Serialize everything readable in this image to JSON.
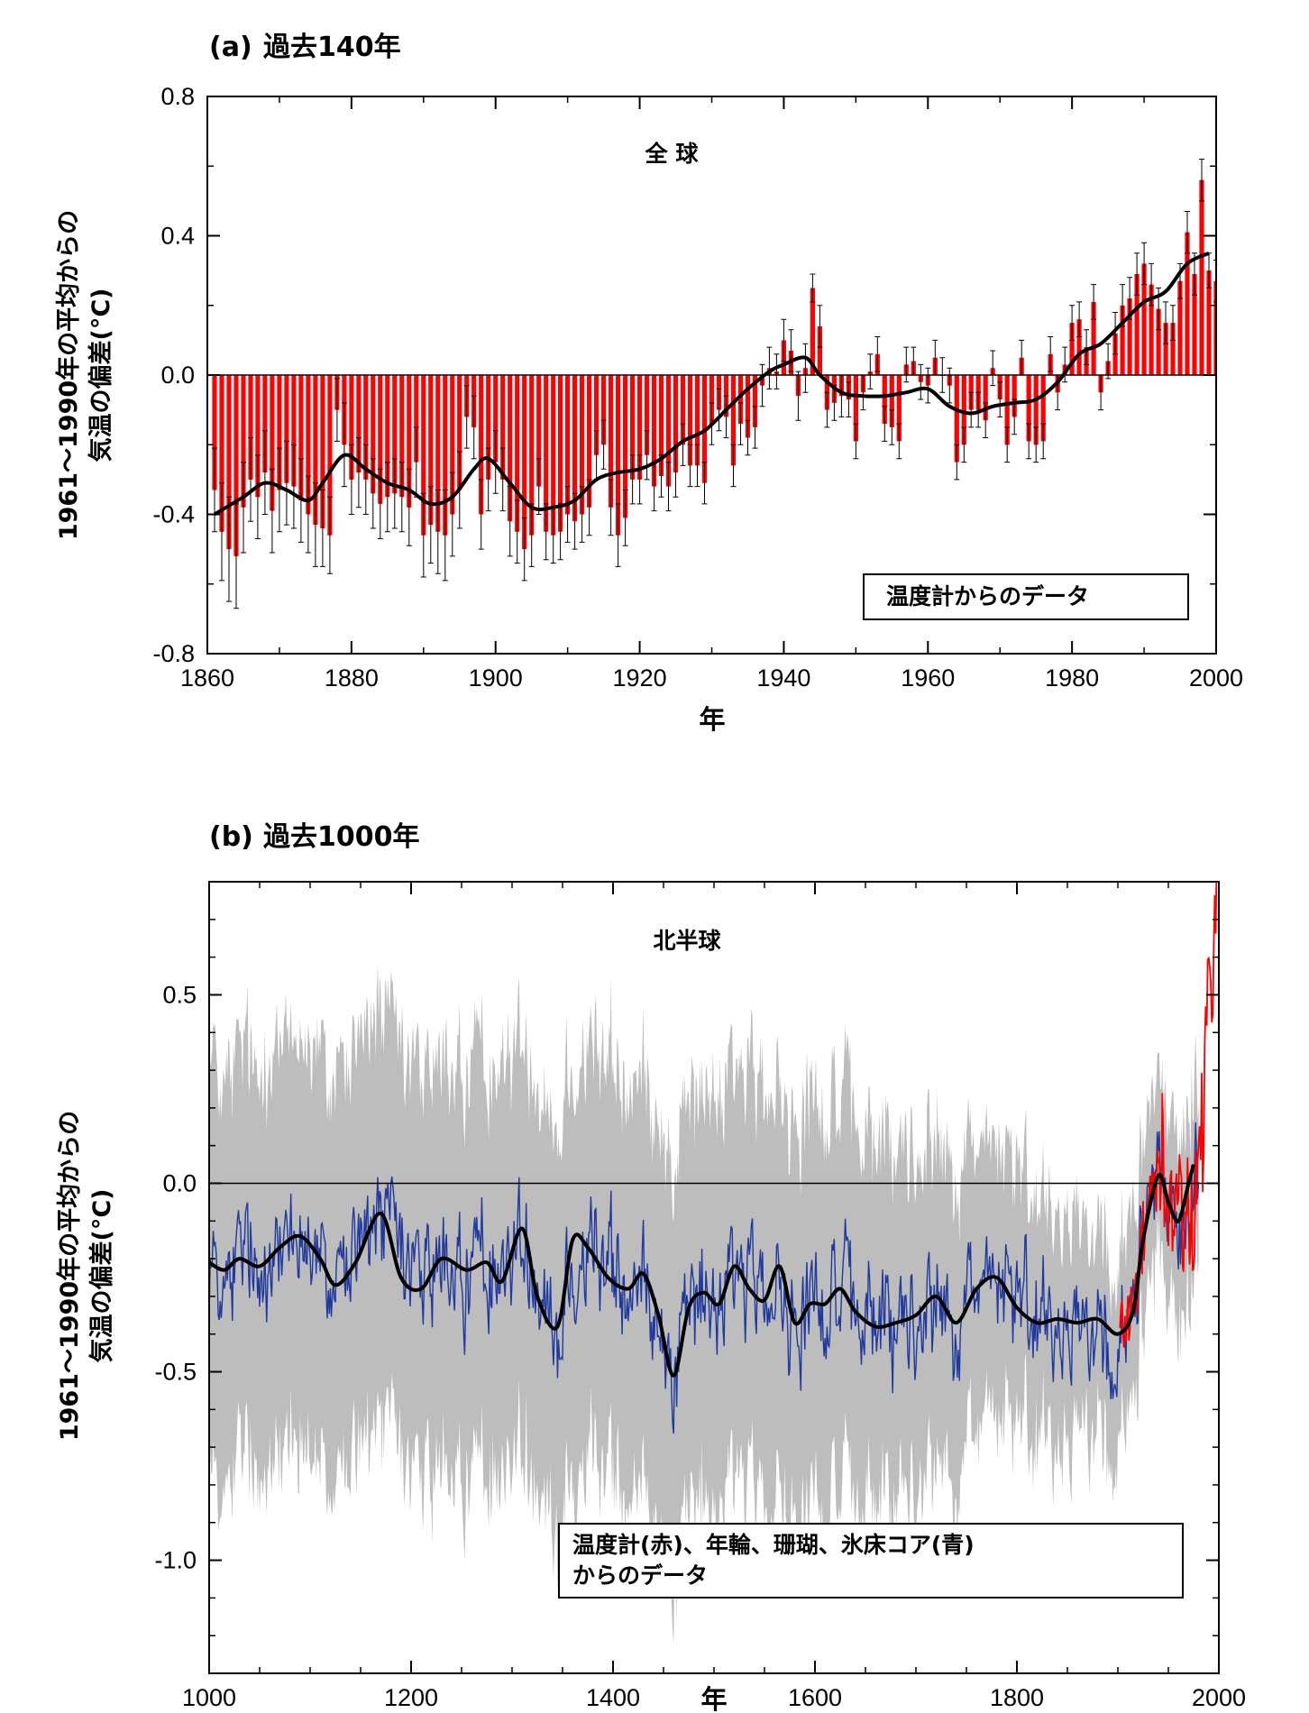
{
  "colors": {
    "bar": "#ff0000",
    "errorbar": "#000000",
    "smooth": "#000000",
    "proxy": "#1f3a9c",
    "uncertainty": "#bdbdbd",
    "instrumental": "#ff0000"
  },
  "chart_data": [
    {
      "type": "bar",
      "panel_label": "(a)",
      "title": "過去140年",
      "region_label": "全 球",
      "legend_text": "温度計からのデータ",
      "xlabel": "年",
      "ylabel_line1": "1961～1990年の平均からの",
      "ylabel_line2": "気温の偏差(°C)",
      "xlim": [
        1860,
        2000
      ],
      "ylim": [
        -0.8,
        0.8
      ],
      "xticks": [
        "1860",
        "1880",
        "1900",
        "1920",
        "1940",
        "1960",
        "1980",
        "2000"
      ],
      "yticks": [
        "-0.8",
        "-0.4",
        "0.0",
        "0.4",
        "0.8"
      ],
      "x": [
        1861,
        1862,
        1863,
        1864,
        1865,
        1866,
        1867,
        1868,
        1869,
        1870,
        1871,
        1872,
        1873,
        1874,
        1875,
        1876,
        1877,
        1878,
        1879,
        1880,
        1881,
        1882,
        1883,
        1884,
        1885,
        1886,
        1887,
        1888,
        1889,
        1890,
        1891,
        1892,
        1893,
        1894,
        1895,
        1896,
        1897,
        1898,
        1899,
        1900,
        1901,
        1902,
        1903,
        1904,
        1905,
        1906,
        1907,
        1908,
        1909,
        1910,
        1911,
        1912,
        1913,
        1914,
        1915,
        1916,
        1917,
        1918,
        1919,
        1920,
        1921,
        1922,
        1923,
        1924,
        1925,
        1926,
        1927,
        1928,
        1929,
        1930,
        1931,
        1932,
        1933,
        1934,
        1935,
        1936,
        1937,
        1938,
        1939,
        1940,
        1941,
        1942,
        1943,
        1944,
        1945,
        1946,
        1947,
        1948,
        1949,
        1950,
        1951,
        1952,
        1953,
        1954,
        1955,
        1956,
        1957,
        1958,
        1959,
        1960,
        1961,
        1962,
        1963,
        1964,
        1965,
        1966,
        1967,
        1968,
        1969,
        1970,
        1971,
        1972,
        1973,
        1974,
        1975,
        1976,
        1977,
        1978,
        1979,
        1980,
        1981,
        1982,
        1983,
        1984,
        1985,
        1986,
        1987,
        1988,
        1989,
        1990,
        1991,
        1992,
        1993,
        1994,
        1995,
        1996,
        1997,
        1998,
        1999,
        2000
      ],
      "values": [
        -0.33,
        -0.45,
        -0.5,
        -0.52,
        -0.38,
        -0.3,
        -0.35,
        -0.28,
        -0.39,
        -0.33,
        -0.31,
        -0.32,
        -0.36,
        -0.4,
        -0.43,
        -0.44,
        -0.46,
        -0.1,
        -0.2,
        -0.3,
        -0.28,
        -0.3,
        -0.34,
        -0.37,
        -0.35,
        -0.34,
        -0.35,
        -0.38,
        -0.25,
        -0.46,
        -0.43,
        -0.45,
        -0.46,
        -0.4,
        -0.33,
        -0.12,
        -0.15,
        -0.4,
        -0.3,
        -0.25,
        -0.3,
        -0.42,
        -0.45,
        -0.5,
        -0.46,
        -0.32,
        -0.45,
        -0.46,
        -0.45,
        -0.4,
        -0.42,
        -0.4,
        -0.38,
        -0.23,
        -0.2,
        -0.38,
        -0.46,
        -0.41,
        -0.3,
        -0.3,
        -0.23,
        -0.32,
        -0.29,
        -0.32,
        -0.28,
        -0.2,
        -0.26,
        -0.26,
        -0.31,
        -0.14,
        -0.1,
        -0.12,
        -0.26,
        -0.14,
        -0.18,
        -0.15,
        -0.03,
        0.02,
        0.01,
        0.1,
        0.07,
        -0.06,
        0.02,
        0.25,
        0.14,
        -0.1,
        -0.08,
        -0.06,
        -0.07,
        -0.19,
        -0.05,
        0.01,
        0.06,
        -0.14,
        -0.15,
        -0.19,
        0.03,
        0.04,
        -0.02,
        -0.03,
        0.05,
        0.0,
        -0.03,
        -0.25,
        -0.2,
        -0.1,
        -0.1,
        -0.13,
        0.02,
        -0.07,
        -0.2,
        -0.12,
        0.05,
        -0.19,
        -0.2,
        -0.19,
        0.06,
        -0.05,
        0.03,
        0.15,
        0.16,
        0.08,
        0.21,
        -0.05,
        0.04,
        0.12,
        0.2,
        0.22,
        0.29,
        0.32,
        0.26,
        0.19,
        0.15,
        0.15,
        0.27,
        0.41,
        0.29,
        0.56,
        0.3,
        0.27
      ],
      "errors": [
        0.12,
        0.14,
        0.15,
        0.15,
        0.13,
        0.12,
        0.12,
        0.12,
        0.12,
        0.12,
        0.12,
        0.12,
        0.12,
        0.11,
        0.12,
        0.11,
        0.11,
        0.09,
        0.12,
        0.1,
        0.1,
        0.1,
        0.1,
        0.1,
        0.1,
        0.1,
        0.1,
        0.11,
        0.1,
        0.12,
        0.11,
        0.12,
        0.13,
        0.12,
        0.11,
        0.09,
        0.09,
        0.1,
        0.09,
        0.09,
        0.09,
        0.1,
        0.09,
        0.09,
        0.09,
        0.08,
        0.08,
        0.08,
        0.08,
        0.08,
        0.08,
        0.08,
        0.08,
        0.07,
        0.07,
        0.08,
        0.09,
        0.08,
        0.07,
        0.07,
        0.07,
        0.07,
        0.06,
        0.07,
        0.07,
        0.06,
        0.06,
        0.06,
        0.06,
        0.06,
        0.06,
        0.06,
        0.06,
        0.06,
        0.05,
        0.06,
        0.06,
        0.06,
        0.05,
        0.06,
        0.06,
        0.07,
        0.07,
        0.04,
        0.06,
        0.05,
        0.05,
        0.06,
        0.05,
        0.05,
        0.05,
        0.05,
        0.05,
        0.05,
        0.05,
        0.05,
        0.05,
        0.04,
        0.05,
        0.05,
        0.05,
        0.05,
        0.05,
        0.05,
        0.05,
        0.05,
        0.05,
        0.05,
        0.05,
        0.05,
        0.05,
        0.05,
        0.05,
        0.05,
        0.05,
        0.05,
        0.05,
        0.05,
        0.05,
        0.05,
        0.05,
        0.05,
        0.05,
        0.05,
        0.05,
        0.06,
        0.06,
        0.06,
        0.06,
        0.06,
        0.06,
        0.06,
        0.06,
        0.05,
        0.05,
        0.06,
        0.06,
        0.06,
        0.05,
        0.06
      ],
      "smooth_x": [
        1861,
        1865,
        1868,
        1871,
        1874,
        1876,
        1879,
        1882,
        1885,
        1888,
        1891,
        1894,
        1897,
        1899,
        1902,
        1905,
        1908,
        1911,
        1914,
        1917,
        1920,
        1923,
        1926,
        1929,
        1932,
        1935,
        1938,
        1940,
        1943,
        1945,
        1948,
        1951,
        1954,
        1957,
        1960,
        1963,
        1966,
        1969,
        1972,
        1975,
        1978,
        1981,
        1984,
        1987,
        1990,
        1993,
        1996,
        1999
      ],
      "smooth_y": [
        -0.4,
        -0.35,
        -0.31,
        -0.33,
        -0.36,
        -0.31,
        -0.23,
        -0.27,
        -0.31,
        -0.33,
        -0.37,
        -0.35,
        -0.27,
        -0.24,
        -0.31,
        -0.38,
        -0.38,
        -0.36,
        -0.3,
        -0.28,
        -0.27,
        -0.24,
        -0.19,
        -0.16,
        -0.1,
        -0.04,
        0.01,
        0.03,
        0.05,
        0.0,
        -0.05,
        -0.06,
        -0.06,
        -0.05,
        -0.04,
        -0.09,
        -0.11,
        -0.09,
        -0.08,
        -0.07,
        -0.02,
        0.06,
        0.09,
        0.15,
        0.21,
        0.24,
        0.32,
        0.35
      ]
    },
    {
      "type": "line",
      "panel_label": "(b)",
      "title": "過去1000年",
      "region_label": "北半球",
      "legend_line1": "温度計(赤)、年輪、珊瑚、氷床コア(青)",
      "legend_line2": "からのデータ",
      "xlabel": "年",
      "ylabel_line1": "1961～1990年の平均からの",
      "ylabel_line2": "気温の偏差(°C)",
      "xlim": [
        1000,
        2000
      ],
      "ylim": [
        -1.3,
        0.8
      ],
      "xticks": [
        "1000",
        "1200",
        "1400",
        "1600",
        "1800",
        "2000"
      ],
      "yticks": [
        "-1.0",
        "-0.5",
        "0.0",
        "0.5"
      ],
      "smooth_x": [
        1000,
        1015,
        1030,
        1050,
        1070,
        1090,
        1110,
        1125,
        1145,
        1170,
        1190,
        1210,
        1230,
        1255,
        1275,
        1290,
        1310,
        1325,
        1345,
        1360,
        1375,
        1395,
        1415,
        1430,
        1445,
        1460,
        1475,
        1490,
        1505,
        1520,
        1535,
        1550,
        1565,
        1580,
        1595,
        1610,
        1625,
        1640,
        1660,
        1680,
        1700,
        1720,
        1740,
        1760,
        1780,
        1800,
        1820,
        1840,
        1860,
        1880,
        1900,
        1915,
        1925,
        1940,
        1950,
        1960,
        1970,
        1975
      ],
      "smooth_y": [
        -0.21,
        -0.23,
        -0.2,
        -0.22,
        -0.17,
        -0.14,
        -0.2,
        -0.27,
        -0.21,
        -0.08,
        -0.25,
        -0.28,
        -0.2,
        -0.23,
        -0.21,
        -0.26,
        -0.12,
        -0.3,
        -0.38,
        -0.15,
        -0.17,
        -0.25,
        -0.28,
        -0.24,
        -0.35,
        -0.51,
        -0.33,
        -0.29,
        -0.32,
        -0.22,
        -0.28,
        -0.31,
        -0.22,
        -0.37,
        -0.32,
        -0.32,
        -0.28,
        -0.34,
        -0.38,
        -0.37,
        -0.35,
        -0.3,
        -0.37,
        -0.28,
        -0.25,
        -0.33,
        -0.37,
        -0.36,
        -0.37,
        -0.36,
        -0.4,
        -0.34,
        -0.15,
        0.02,
        -0.05,
        -0.1,
        0.0,
        0.05
      ],
      "proxy_range": [
        1000,
        1980
      ],
      "instrumental_range": [
        1902,
        1998
      ],
      "uncertainty_halfwidth_early": 0.5,
      "uncertainty_halfwidth_late": 0.2
    }
  ]
}
